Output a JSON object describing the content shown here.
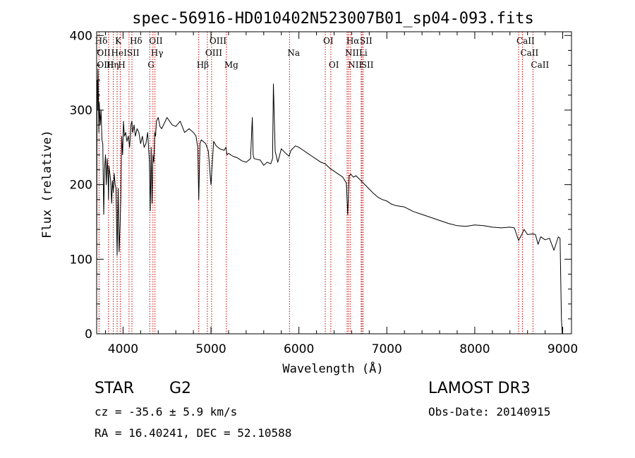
{
  "chart_data": {
    "type": "line",
    "title": "spec-56916-HD010402N523007B01_sp04-093.fits",
    "xlabel": "Wavelength (Å)",
    "ylabel": "Flux (relative)",
    "xlim": [
      3700,
      9100
    ],
    "ylim": [
      0,
      405
    ],
    "x_ticks": [
      4000,
      5000,
      6000,
      7000,
      8000,
      9000
    ],
    "y_ticks": [
      0,
      100,
      200,
      300,
      400
    ],
    "series": [
      {
        "name": "spectrum",
        "x": [
          3700,
          3705,
          3710,
          3715,
          3720,
          3725,
          3730,
          3740,
          3750,
          3760,
          3770,
          3780,
          3790,
          3800,
          3810,
          3820,
          3830,
          3835,
          3840,
          3850,
          3860,
          3870,
          3880,
          3889,
          3900,
          3910,
          3920,
          3933,
          3945,
          3955,
          3968,
          3975,
          3985,
          3995,
          4005,
          4015,
          4030,
          4045,
          4060,
          4075,
          4090,
          4101,
          4110,
          4125,
          4140,
          4160,
          4180,
          4200,
          4220,
          4240,
          4260,
          4280,
          4300,
          4310,
          4320,
          4330,
          4340,
          4350,
          4360,
          4370,
          4380,
          4400,
          4420,
          4440,
          4460,
          4480,
          4500,
          4530,
          4560,
          4600,
          4650,
          4700,
          4750,
          4800,
          4830,
          4850,
          4861,
          4875,
          4890,
          4910,
          4940,
          4970,
          5000,
          5030,
          5060,
          5100,
          5150,
          5170,
          5183,
          5200,
          5250,
          5300,
          5350,
          5400,
          5450,
          5470,
          5480,
          5490,
          5520,
          5560,
          5600,
          5640,
          5680,
          5700,
          5710,
          5730,
          5760,
          5800,
          5850,
          5890,
          5893,
          5910,
          5960,
          6000,
          6050,
          6100,
          6150,
          6200,
          6250,
          6300,
          6350,
          6400,
          6450,
          6500,
          6540,
          6555,
          6563,
          6572,
          6590,
          6620,
          6650,
          6700,
          6750,
          6800,
          6850,
          6900,
          6950,
          7000,
          7050,
          7100,
          7200,
          7300,
          7400,
          7500,
          7600,
          7700,
          7800,
          7900,
          8000,
          8100,
          8200,
          8300,
          8400,
          8450,
          8498,
          8520,
          8542,
          8560,
          8600,
          8662,
          8690,
          8720,
          8750,
          8800,
          8850,
          8900,
          8950,
          8970,
          8985,
          8995,
          9000
        ],
        "y": [
          60,
          340,
          300,
          355,
          315,
          270,
          310,
          280,
          300,
          260,
          255,
          160,
          220,
          240,
          200,
          235,
          210,
          180,
          225,
          215,
          205,
          175,
          205,
          190,
          215,
          200,
          195,
          105,
          195,
          110,
          150,
          185,
          265,
          240,
          285,
          265,
          270,
          258,
          265,
          250,
          280,
          285,
          270,
          280,
          265,
          275,
          270,
          255,
          265,
          250,
          255,
          270,
          230,
          165,
          250,
          175,
          240,
          230,
          270,
          265,
          285,
          290,
          278,
          275,
          280,
          285,
          290,
          285,
          280,
          278,
          285,
          270,
          275,
          270,
          265,
          250,
          180,
          255,
          260,
          258,
          255,
          245,
          200,
          258,
          252,
          248,
          246,
          250,
          240,
          242,
          238,
          236,
          232,
          230,
          235,
          290,
          240,
          235,
          234,
          233,
          226,
          230,
          228,
          235,
          335,
          245,
          230,
          248,
          242,
          238,
          240,
          246,
          252,
          250,
          246,
          242,
          238,
          234,
          230,
          228,
          222,
          218,
          214,
          210,
          202,
          160,
          185,
          212,
          214,
          210,
          212,
          206,
          200,
          194,
          188,
          183,
          180,
          178,
          174,
          172,
          170,
          164,
          160,
          156,
          152,
          148,
          145,
          144,
          146,
          145,
          143,
          142,
          143,
          142,
          125,
          130,
          135,
          140,
          133,
          134,
          133,
          120,
          130,
          126,
          128,
          112,
          130,
          128,
          20,
          0,
          0
        ]
      }
    ],
    "line_labels": [
      {
        "text": "Hδ",
        "x": 3705,
        "row": 1
      },
      {
        "text": "K",
        "x": 3933,
        "row": 1
      },
      {
        "text": "Hδ",
        "x": 4101,
        "row": 1
      },
      {
        "text": "OII",
        "x": 4320,
        "row": 1
      },
      {
        "text": "OIII",
        "x": 5007,
        "row": 1
      },
      {
        "text": "OI",
        "x": 6300,
        "row": 1
      },
      {
        "text": "Hα",
        "x": 6563,
        "row": 1
      },
      {
        "text": "SII",
        "x": 6717,
        "row": 1
      },
      {
        "text": "CaII",
        "x": 8498,
        "row": 1
      },
      {
        "text": "OII",
        "x": 3727,
        "row": 2
      },
      {
        "text": "HeI",
        "x": 3889,
        "row": 2
      },
      {
        "text": "SII",
        "x": 4068,
        "row": 2
      },
      {
        "text": "Hγ",
        "x": 4340,
        "row": 2
      },
      {
        "text": "OIII",
        "x": 4959,
        "row": 2
      },
      {
        "text": "Na",
        "x": 5893,
        "row": 2
      },
      {
        "text": "NII",
        "x": 6548,
        "row": 2
      },
      {
        "text": "Li",
        "x": 6708,
        "row": 2
      },
      {
        "text": "CaII",
        "x": 8542,
        "row": 2
      },
      {
        "text": "OIII",
        "x": 3727,
        "row": 3
      },
      {
        "text": "Hη",
        "x": 3835,
        "row": 3
      },
      {
        "text": "H",
        "x": 3968,
        "row": 3
      },
      {
        "text": "G",
        "x": 4304,
        "row": 3
      },
      {
        "text": "Hβ",
        "x": 4861,
        "row": 3
      },
      {
        "text": "Mg",
        "x": 5175,
        "row": 3
      },
      {
        "text": "OI",
        "x": 6363,
        "row": 3
      },
      {
        "text": "NII",
        "x": 6583,
        "row": 3
      },
      {
        "text": "SII",
        "x": 6731,
        "row": 3
      },
      {
        "text": "CaII",
        "x": 8662,
        "row": 3
      }
    ],
    "line_markers_x": [
      3727,
      3835,
      3889,
      3933,
      3968,
      4068,
      4101,
      4304,
      4340,
      4363,
      4861,
      4959,
      5007,
      5175,
      5893,
      6300,
      6363,
      6548,
      6563,
      6583,
      6708,
      6717,
      6731,
      8498,
      8542,
      8662
    ],
    "colors": {
      "spectrum": "#000000",
      "markers": "#cc0000",
      "axes": "#000000"
    }
  },
  "footer": {
    "object_class": "STAR",
    "subclass": "G2",
    "redshift": "cz = -35.6 ± 5.9 km/s",
    "coords": "RA =  16.40241, DEC =  52.10588",
    "survey": "LAMOST DR3",
    "obs_date": "Obs-Date: 20140915"
  }
}
